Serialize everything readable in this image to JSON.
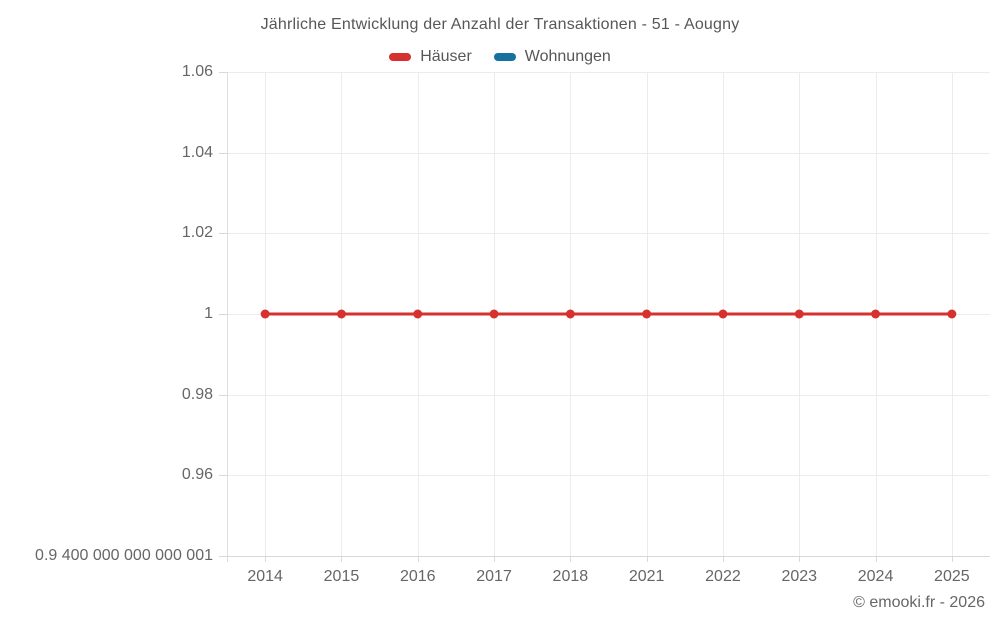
{
  "chart_data": {
    "type": "line",
    "title": "Jährliche Entwicklung der Anzahl der Transaktionen - 51 - Aougny",
    "categories": [
      "2014",
      "2015",
      "2016",
      "2017",
      "2018",
      "2021",
      "2022",
      "2023",
      "2024",
      "2025"
    ],
    "series": [
      {
        "name": "Häuser",
        "color": "#d5312f",
        "values": [
          1,
          1,
          1,
          1,
          1,
          1,
          1,
          1,
          1,
          1
        ]
      },
      {
        "name": "Wohnungen",
        "color": "#17719f",
        "values": []
      }
    ],
    "xlabel": "",
    "ylabel": "",
    "ylim": [
      0.94,
      1.06
    ],
    "y_ticks": [
      "1.06",
      "1.04",
      "1.02",
      "1",
      "0.98",
      "0.96",
      "0.9 400 000 000 000 001"
    ],
    "y_tick_values": [
      1.06,
      1.04,
      1.02,
      1,
      0.98,
      0.96,
      0.9400000000000001
    ],
    "grid": true,
    "legend_position": "top",
    "line_width": 3,
    "marker_radius": 4.5
  },
  "colors": {
    "background": "#ffffff",
    "title_text": "#575757",
    "tick_label_text": "#666666",
    "gridline": "#ececec",
    "axis_line": "#d9d9d9",
    "series_hauser": "#d5312f",
    "series_wohnungen": "#17719f"
  },
  "footer": {
    "copyright": "© emooki.fr - 2026"
  }
}
